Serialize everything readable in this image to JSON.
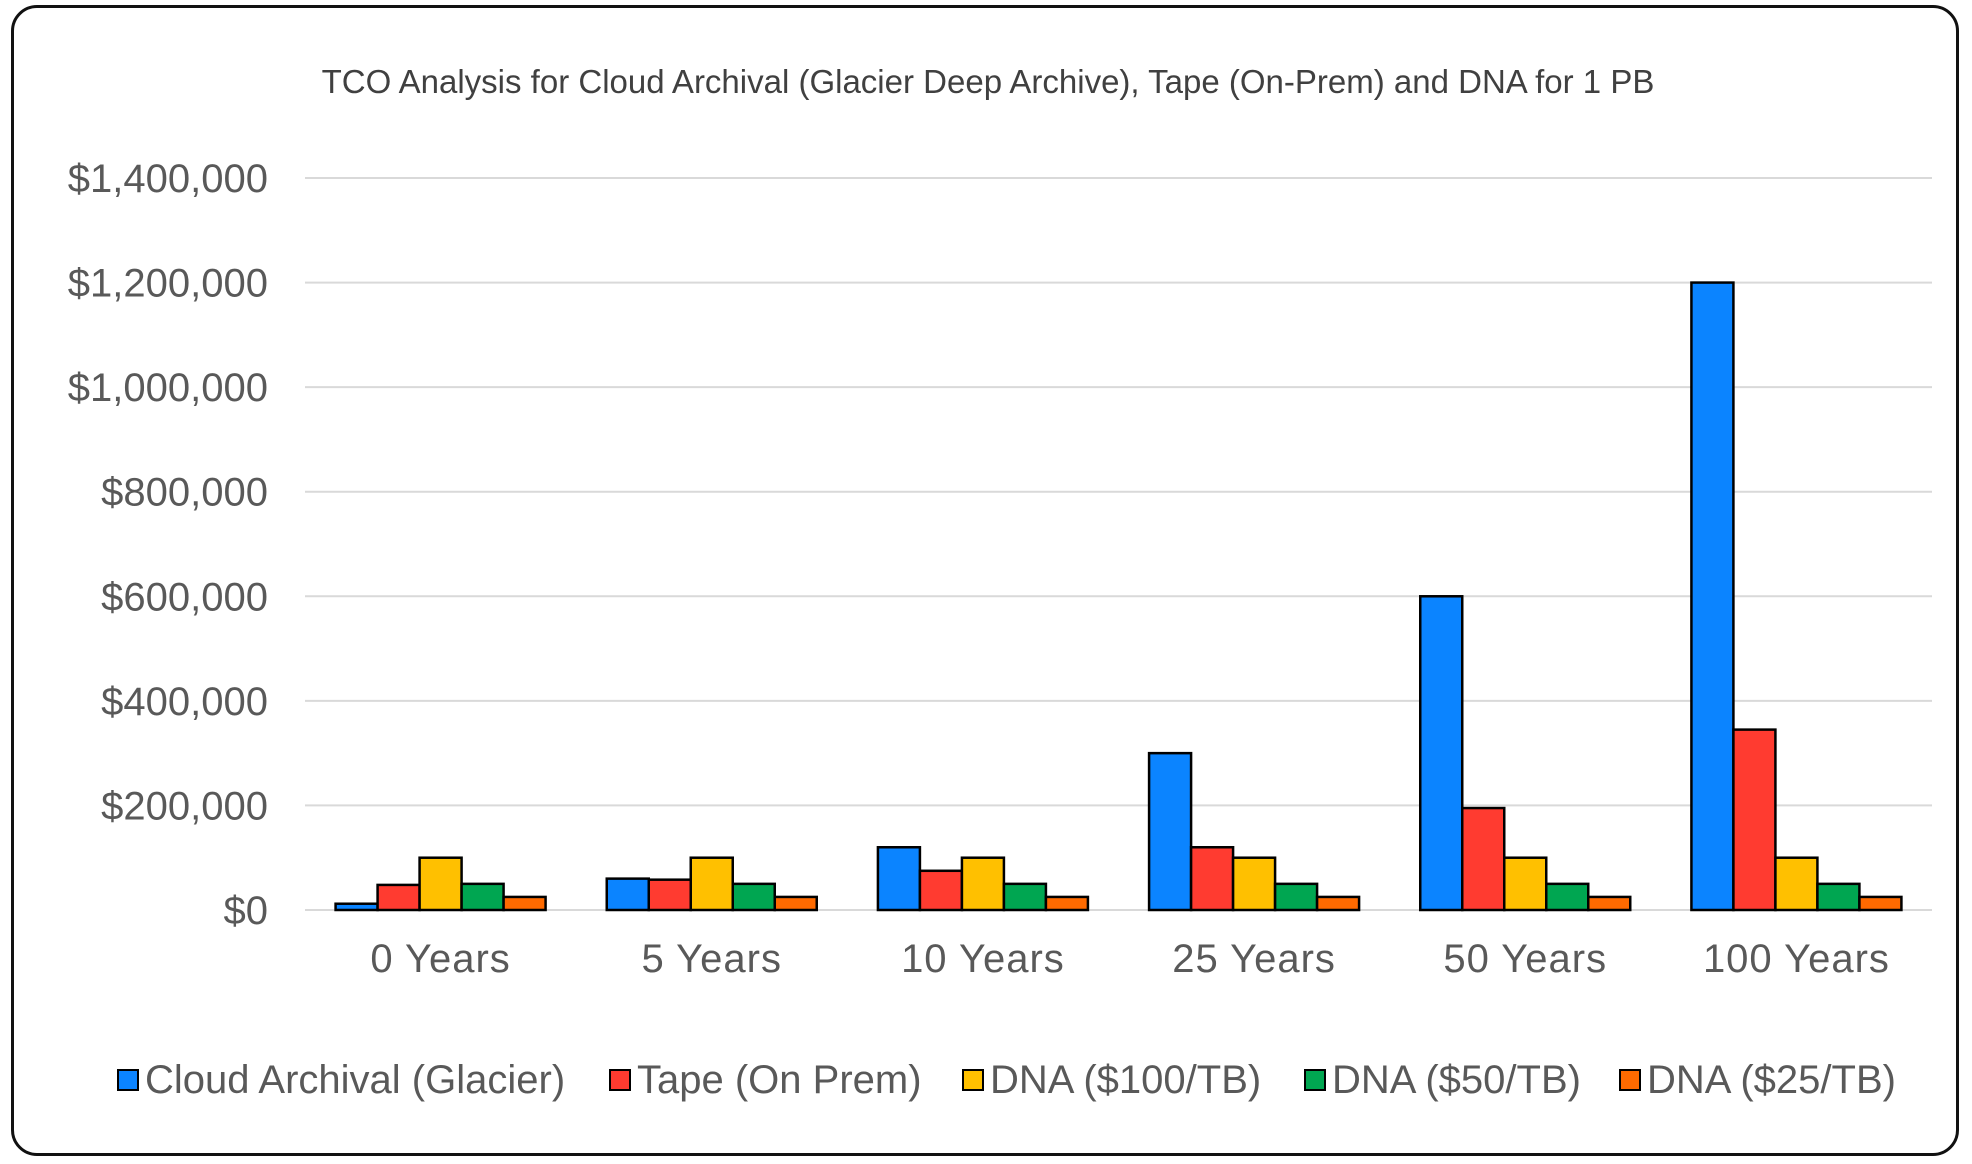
{
  "chart_data": {
    "type": "bar",
    "title": "TCO Analysis for Cloud Archival (Glacier Deep Archive), Tape (On-Prem) and DNA for 1 PB",
    "categories": [
      "0 Years",
      "5 Years",
      "10 Years",
      "25 Years",
      "50 Years",
      "100 Years"
    ],
    "series": [
      {
        "name": "Cloud Archival (Glacier)",
        "color": "#0B84FF",
        "values": [
          12000,
          60000,
          120000,
          300000,
          600000,
          1200000
        ]
      },
      {
        "name": "Tape (On Prem)",
        "color": "#FF3B30",
        "values": [
          48000,
          58000,
          75000,
          120000,
          195000,
          345000
        ]
      },
      {
        "name": "DNA ($100/TB)",
        "color": "#FFC000",
        "values": [
          100000,
          100000,
          100000,
          100000,
          100000,
          100000
        ]
      },
      {
        "name": "DNA ($50/TB)",
        "color": "#00A651",
        "values": [
          50000,
          50000,
          50000,
          50000,
          50000,
          50000
        ]
      },
      {
        "name": "DNA ($25/TB)",
        "color": "#FF6A00",
        "values": [
          25000,
          25000,
          25000,
          25000,
          25000,
          25000
        ]
      }
    ],
    "yticks": [
      "$0",
      "$200,000",
      "$400,000",
      "$600,000",
      "$800,000",
      "$1,000,000",
      "$1,200,000",
      "$1,400,000"
    ],
    "ylim": [
      0,
      1400000
    ],
    "grid": true,
    "legend": "bottom"
  }
}
